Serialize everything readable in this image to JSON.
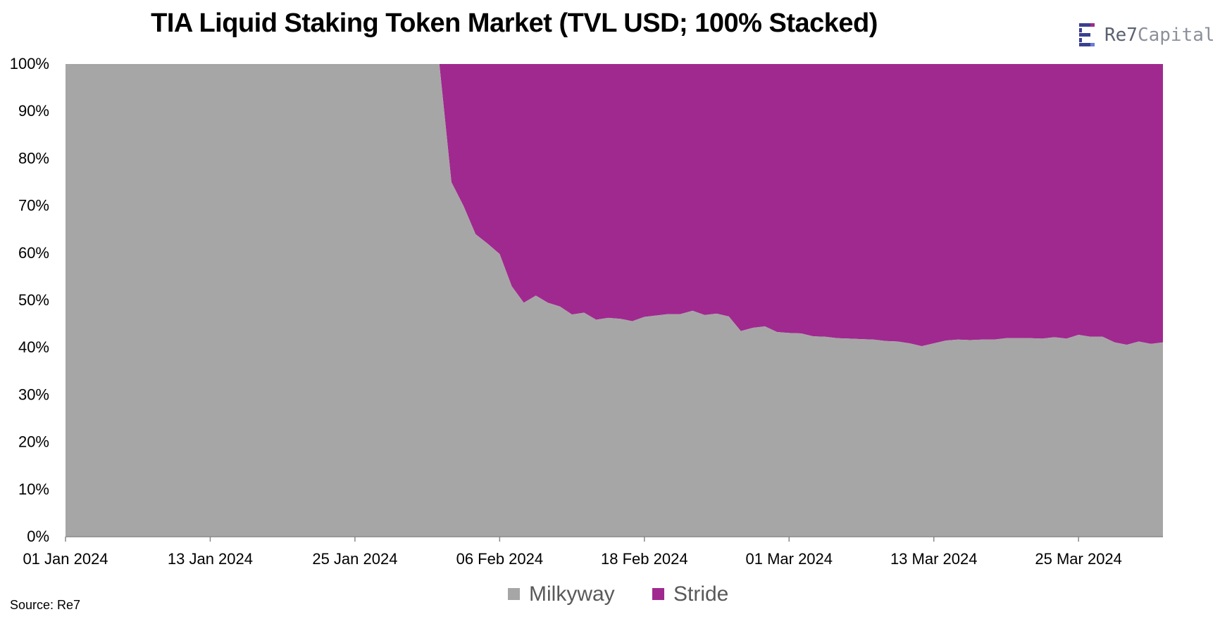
{
  "brand": {
    "name": "Re7",
    "suffix": "Capital"
  },
  "source": "Source: Re7",
  "colors": {
    "milkyway": "#a6a6a6",
    "stride": "#a0298f",
    "axis": "#888888"
  },
  "chart_data": {
    "type": "area",
    "stacked": "percent",
    "title": "TIA Liquid Staking Token Market (TVL USD; 100% Stacked)",
    "xlabel": "",
    "ylabel": "",
    "ylim": [
      0,
      100
    ],
    "x_ticks": [
      "01 Jan 2024",
      "13 Jan 2024",
      "25 Jan 2024",
      "06 Feb 2024",
      "18 Feb 2024",
      "01 Mar 2024",
      "13 Mar 2024",
      "25 Mar 2024"
    ],
    "y_ticks": [
      "0%",
      "10%",
      "20%",
      "30%",
      "40%",
      "50%",
      "60%",
      "70%",
      "80%",
      "90%",
      "100%"
    ],
    "legend": {
      "position": "bottom",
      "entries": [
        "Milkyway",
        "Stride"
      ]
    },
    "series": [
      {
        "name": "Milkyway",
        "points": [
          [
            "2024-01-01",
            100
          ],
          [
            "2024-02-01",
            100
          ],
          [
            "2024-02-02",
            75
          ],
          [
            "2024-02-03",
            70
          ],
          [
            "2024-02-04",
            64
          ],
          [
            "2024-02-05",
            62
          ],
          [
            "2024-02-06",
            59.8
          ],
          [
            "2024-02-07",
            53
          ],
          [
            "2024-02-08",
            49.5
          ],
          [
            "2024-02-09",
            51
          ],
          [
            "2024-02-10",
            49.5
          ],
          [
            "2024-02-11",
            48.7
          ],
          [
            "2024-02-12",
            47
          ],
          [
            "2024-02-13",
            47.4
          ],
          [
            "2024-02-14",
            45.9
          ],
          [
            "2024-02-15",
            46.3
          ],
          [
            "2024-02-16",
            46.1
          ],
          [
            "2024-02-17",
            45.6
          ],
          [
            "2024-02-18",
            46.5
          ],
          [
            "2024-02-19",
            46.8
          ],
          [
            "2024-02-20",
            47.1
          ],
          [
            "2024-02-21",
            47.1
          ],
          [
            "2024-02-22",
            47.8
          ],
          [
            "2024-02-23",
            46.9
          ],
          [
            "2024-02-24",
            47.2
          ],
          [
            "2024-02-25",
            46.6
          ],
          [
            "2024-02-26",
            43.5
          ],
          [
            "2024-02-27",
            44.2
          ],
          [
            "2024-02-28",
            44.5
          ],
          [
            "2024-02-29",
            43.3
          ],
          [
            "2024-03-01",
            43.1
          ],
          [
            "2024-03-02",
            43.0
          ],
          [
            "2024-03-03",
            42.4
          ],
          [
            "2024-03-04",
            42.3
          ],
          [
            "2024-03-05",
            42.0
          ],
          [
            "2024-03-06",
            41.9
          ],
          [
            "2024-03-07",
            41.8
          ],
          [
            "2024-03-08",
            41.7
          ],
          [
            "2024-03-09",
            41.4
          ],
          [
            "2024-03-10",
            41.3
          ],
          [
            "2024-03-11",
            40.9
          ],
          [
            "2024-03-12",
            40.3
          ],
          [
            "2024-03-13",
            40.9
          ],
          [
            "2024-03-14",
            41.5
          ],
          [
            "2024-03-15",
            41.7
          ],
          [
            "2024-03-16",
            41.6
          ],
          [
            "2024-03-17",
            41.7
          ],
          [
            "2024-03-18",
            41.7
          ],
          [
            "2024-03-19",
            42.0
          ],
          [
            "2024-03-20",
            42.0
          ],
          [
            "2024-03-21",
            42.0
          ],
          [
            "2024-03-22",
            41.9
          ],
          [
            "2024-03-23",
            42.2
          ],
          [
            "2024-03-24",
            41.9
          ],
          [
            "2024-03-25",
            42.7
          ],
          [
            "2024-03-26",
            42.3
          ],
          [
            "2024-03-27",
            42.3
          ],
          [
            "2024-03-28",
            41.1
          ],
          [
            "2024-03-29",
            40.6
          ],
          [
            "2024-03-30",
            41.3
          ],
          [
            "2024-03-31",
            40.8
          ],
          [
            "2024-04-01",
            41.1
          ]
        ]
      },
      {
        "name": "Stride",
        "complement": true
      }
    ]
  }
}
